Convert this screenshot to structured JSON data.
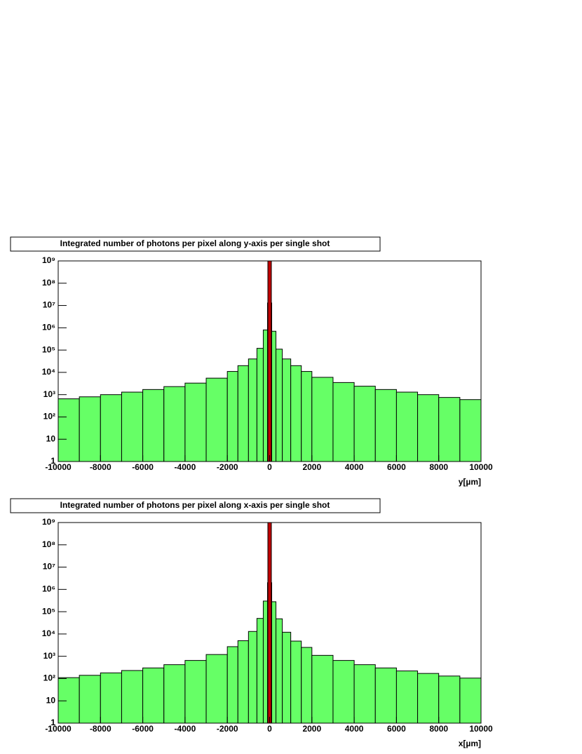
{
  "chart_data": [
    {
      "type": "histogram",
      "title": "Integrated number of photons per pixel along y-axis per single shot",
      "xlabel": "y[µm]",
      "bins": [
        -10000,
        -9000,
        -8000,
        -7000,
        -6000,
        -5000,
        -4000,
        -3000,
        -2000,
        -1500,
        -1000,
        -600,
        -300,
        -100,
        100,
        300,
        600,
        1000,
        1500,
        2000,
        3000,
        4000,
        5000,
        6000,
        7000,
        8000,
        9000,
        10000
      ],
      "values": [
        650,
        800,
        1000,
        1300,
        1700,
        2300,
        3300,
        5500,
        11000,
        20000,
        40000,
        120000,
        800000,
        13000000,
        700000,
        110000,
        40000,
        20000,
        11000,
        6000,
        3500,
        2400,
        1700,
        1300,
        1000,
        750,
        600
      ],
      "color": "#66ff66",
      "edge_color": "#000000",
      "log_y": true,
      "xlim": [
        -10000,
        10000
      ],
      "ylim": [
        1,
        1000000000
      ],
      "xticks": [
        -10000,
        -8000,
        -6000,
        -4000,
        -2000,
        0,
        2000,
        4000,
        6000,
        8000,
        10000
      ],
      "yticks": [
        1,
        10,
        {
          "value": 100,
          "label": "10²"
        },
        {
          "value": 1000,
          "label": "10³"
        },
        {
          "value": 10000,
          "label": "10⁴"
        },
        {
          "value": 100000,
          "label": "10⁵"
        },
        {
          "value": 1000000,
          "label": "10⁶"
        },
        {
          "value": 10000000,
          "label": "10⁷"
        },
        {
          "value": 100000000,
          "label": "10⁸"
        },
        {
          "value": 1000000000,
          "label": "10⁹"
        }
      ],
      "reference_line": {
        "x": 0,
        "color": "#c00000"
      }
    },
    {
      "type": "histogram",
      "title": "Integrated number of photons per pixel along x-axis per single shot",
      "xlabel": "x[µm]",
      "bins": [
        -10000,
        -9000,
        -8000,
        -7000,
        -6000,
        -5000,
        -4000,
        -3000,
        -2000,
        -1500,
        -1000,
        -600,
        -300,
        -100,
        100,
        300,
        600,
        1000,
        1500,
        2000,
        3000,
        4000,
        5000,
        6000,
        7000,
        8000,
        9000,
        10000
      ],
      "values": [
        110,
        140,
        180,
        230,
        300,
        420,
        650,
        1200,
        2700,
        5000,
        13000,
        50000,
        300000,
        2000000,
        280000,
        48000,
        12000,
        4800,
        2500,
        1100,
        650,
        420,
        300,
        220,
        170,
        130,
        105
      ],
      "color": "#66ff66",
      "edge_color": "#000000",
      "log_y": true,
      "xlim": [
        -10000,
        10000
      ],
      "ylim": [
        1,
        1000000000
      ],
      "xticks": [
        -10000,
        -8000,
        -6000,
        -4000,
        -2000,
        0,
        2000,
        4000,
        6000,
        8000,
        10000
      ],
      "yticks": [
        1,
        10,
        {
          "value": 100,
          "label": "10²"
        },
        {
          "value": 1000,
          "label": "10³"
        },
        {
          "value": 10000,
          "label": "10⁴"
        },
        {
          "value": 100000,
          "label": "10⁵"
        },
        {
          "value": 1000000,
          "label": "10⁶"
        },
        {
          "value": 10000000,
          "label": "10⁷"
        },
        {
          "value": 100000000,
          "label": "10⁸"
        },
        {
          "value": 1000000000,
          "label": "10⁹"
        }
      ],
      "reference_line": {
        "x": 0,
        "color": "#c00000"
      }
    }
  ]
}
